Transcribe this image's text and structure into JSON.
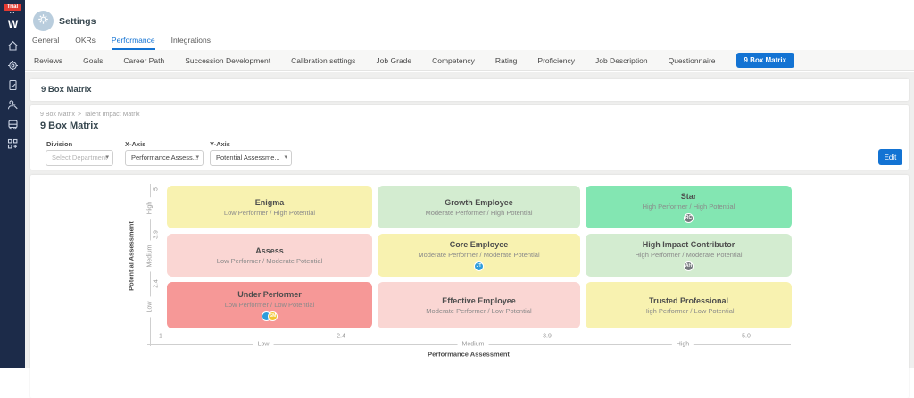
{
  "sidebar": {
    "trial_badge": "Trial",
    "logo_text": "W",
    "icons": [
      "home-icon",
      "settings-gear-icon",
      "tasks-icon",
      "admin-tools-icon",
      "transport-icon",
      "apps-grid-plus-icon"
    ]
  },
  "header": {
    "title": "Settings",
    "tabs": [
      {
        "label": "General",
        "active": false
      },
      {
        "label": "OKRs",
        "active": false
      },
      {
        "label": "Performance",
        "active": true
      },
      {
        "label": "Integrations",
        "active": false
      }
    ]
  },
  "subtabs": {
    "items": [
      {
        "label": "Reviews",
        "active": false
      },
      {
        "label": "Goals",
        "active": false
      },
      {
        "label": "Career Path",
        "active": false
      },
      {
        "label": "Succession Development",
        "active": false
      },
      {
        "label": "Calibration settings",
        "active": false
      },
      {
        "label": "Job Grade",
        "active": false
      },
      {
        "label": "Competency",
        "active": false
      },
      {
        "label": "Rating",
        "active": false
      },
      {
        "label": "Proficiency",
        "active": false
      },
      {
        "label": "Job Description",
        "active": false
      },
      {
        "label": "Questionnaire",
        "active": false
      },
      {
        "label": "9 Box Matrix",
        "active": true
      }
    ]
  },
  "section": {
    "bar_title": "9 Box Matrix",
    "breadcrumb": {
      "root": "9 Box Matrix",
      "separator": ">",
      "current": "Talent Impact Matrix"
    },
    "page_title": "9 Box Matrix"
  },
  "filters": {
    "division_label": "Division",
    "division_value": "Select Department",
    "x_axis_label": "X-Axis",
    "x_axis_value": "Performance Assess...",
    "y_axis_label": "Y-Axis",
    "y_axis_value": "Potential Assessme...",
    "edit_button": "Edit"
  },
  "colors": {
    "accent_blue": "#1373d3",
    "sidebar_bg": "#1c2b49",
    "trial_red": "#e23b33"
  },
  "chart_data": {
    "type": "heatmap",
    "title": "9 Box Matrix",
    "xlabel": "Performance Assessment",
    "ylabel": "Potential Assessment",
    "x_ticks": [
      "1",
      "2.4",
      "3.9",
      "5.0"
    ],
    "y_ticks": [
      "5",
      "3.9",
      "2.4"
    ],
    "x_segment_labels": [
      "Low",
      "Medium",
      "High"
    ],
    "y_segment_labels": [
      "High",
      "Medium",
      "Low"
    ],
    "x_range": [
      1,
      5
    ],
    "y_range": [
      1,
      5
    ],
    "cells": [
      {
        "row": "High",
        "col": "Low",
        "title": "Enigma",
        "subtitle": "Low Performer / High Potential",
        "color": "#f8f2b0",
        "badges": []
      },
      {
        "row": "High",
        "col": "Medium",
        "title": "Growth Employee",
        "subtitle": "Moderate Performer / High Potential",
        "color": "#d3ecd0",
        "badges": []
      },
      {
        "row": "High",
        "col": "High",
        "title": "Star",
        "subtitle": "High Performer / High Potential",
        "color": "#83e6b2",
        "badges": [
          {
            "initials": "RC",
            "color": "#75797e"
          }
        ]
      },
      {
        "row": "Medium",
        "col": "Low",
        "title": "Assess",
        "subtitle": "Low Performer / Moderate Potential",
        "color": "#fad6d3",
        "badges": []
      },
      {
        "row": "Medium",
        "col": "Medium",
        "title": "Core Employee",
        "subtitle": "Moderate Performer / Moderate Potential",
        "color": "#f8f2b0",
        "badges": [
          {
            "initials": "JT",
            "color": "#2d9cdb"
          }
        ]
      },
      {
        "row": "Medium",
        "col": "High",
        "title": "High Impact Contributor",
        "subtitle": "High Performer / Moderate Potential",
        "color": "#d3ecd0",
        "badges": [
          {
            "initials": "AH",
            "color": "#75797e"
          }
        ]
      },
      {
        "row": "Low",
        "col": "Low",
        "title": "Under Performer",
        "subtitle": "Low Performer / Low Potential",
        "color": "#f69897",
        "badges": [
          {
            "initials": "",
            "color": "#2d9cdb"
          },
          {
            "initials": "SM",
            "color": "#f2c531"
          }
        ]
      },
      {
        "row": "Low",
        "col": "Medium",
        "title": "Effective Employee",
        "subtitle": "Moderate Performer / Low Potential",
        "color": "#fad6d3",
        "badges": []
      },
      {
        "row": "Low",
        "col": "High",
        "title": "Trusted Professional",
        "subtitle": "High Performer / Low Potential",
        "color": "#f8f2b0",
        "badges": []
      }
    ]
  }
}
